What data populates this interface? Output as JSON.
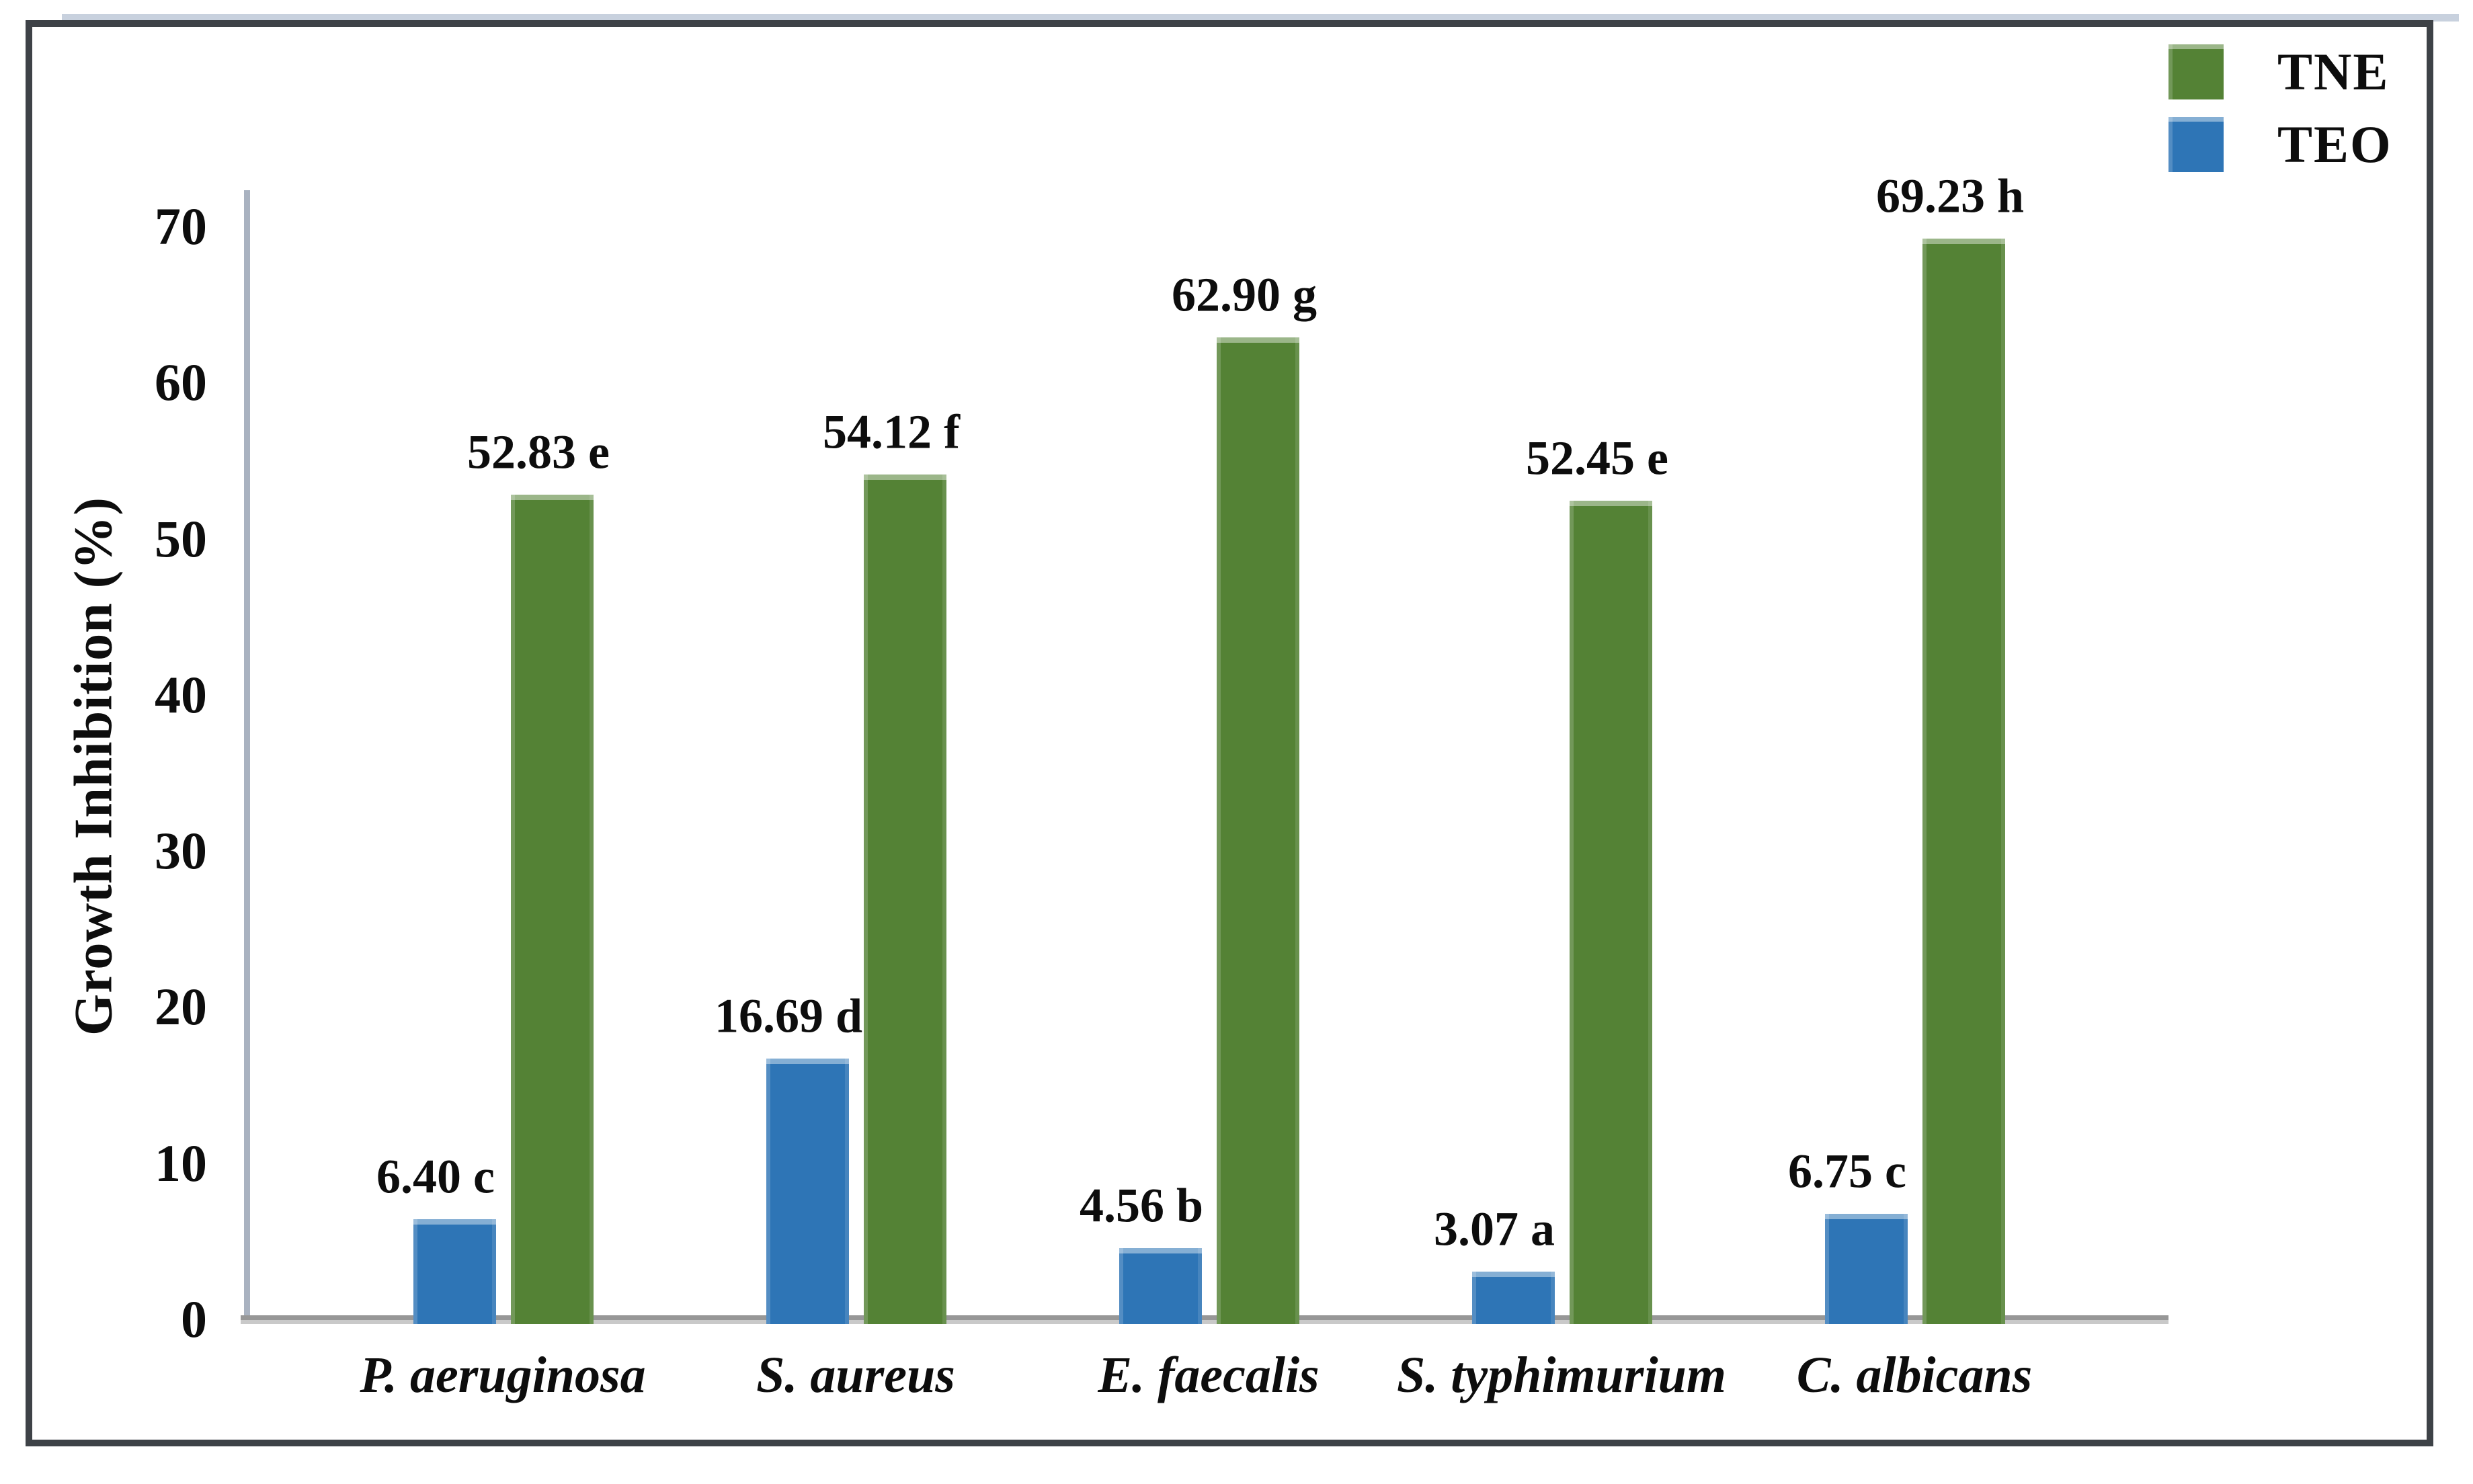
{
  "page": {
    "background": "#ffffff"
  },
  "legend": {
    "position": "top-right",
    "items": [
      {
        "label": "TNE",
        "color": "#548235"
      },
      {
        "label": "TEO",
        "color": "#2e75b6"
      }
    ]
  },
  "chart_data": {
    "type": "bar",
    "title": "",
    "xlabel": "",
    "ylabel": "Growth Inhibition (%)",
    "ylim": [
      0,
      70
    ],
    "yticks": [
      0,
      10,
      20,
      30,
      40,
      50,
      60,
      70
    ],
    "grid": false,
    "legend_position": "top-right",
    "categories": [
      "P. aeruginosa",
      "S. aureus",
      "E. faecalis",
      "S. typhimurium",
      "C. albicans"
    ],
    "group_bar_order": [
      "TEO",
      "TNE"
    ],
    "series": [
      {
        "name": "TNE",
        "color": "#548235",
        "values": [
          52.83,
          54.12,
          62.9,
          52.45,
          69.23
        ],
        "data_labels": [
          "52.83 e",
          "54.12 f",
          "62.90 g",
          "52.45 e",
          "69.23 h"
        ]
      },
      {
        "name": "TEO",
        "color": "#2e75b6",
        "values": [
          6.4,
          16.69,
          4.56,
          3.07,
          6.75
        ],
        "data_labels": [
          "6.40 c",
          "16.69 d",
          "4.56 b",
          "3.07 a",
          "6.75 c"
        ]
      }
    ]
  }
}
